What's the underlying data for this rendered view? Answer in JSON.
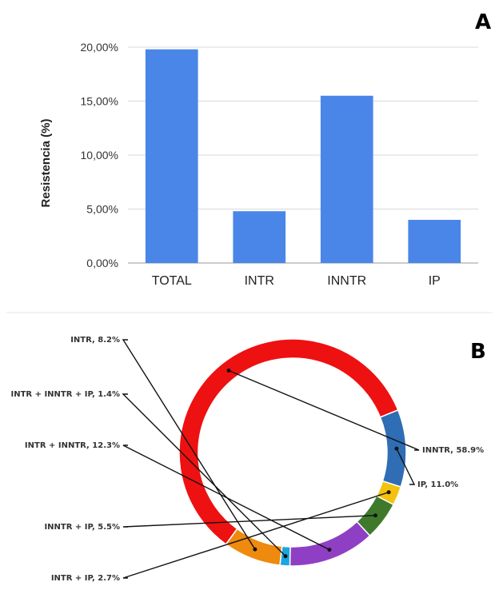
{
  "chart_data": [
    {
      "panel": "A",
      "type": "bar",
      "ylabel": "Resistencia (%)",
      "xlabel": "",
      "categories": [
        "TOTAL",
        "INTR",
        "INNTR",
        "IP"
      ],
      "values": [
        19.8,
        4.8,
        15.5,
        4.0
      ],
      "value_unit": "%",
      "ylim": [
        0,
        20
      ],
      "yticks": [
        "0,00%",
        "5,00%",
        "10,00%",
        "15,00%",
        "20,00%"
      ],
      "grid": true,
      "colors": {
        "bar": "#4a86e8",
        "grid": "#d9d9d9"
      }
    },
    {
      "panel": "B",
      "type": "pie",
      "donut": true,
      "slices": [
        {
          "label": "INNTR, 58.9%",
          "value": 58.9,
          "color": "#ee1111"
        },
        {
          "label": "IP, 11.0%",
          "value": 11.0,
          "color": "#2f6db5"
        },
        {
          "label": "INTR + IP, 2.7%",
          "value": 2.7,
          "color": "#f4c20d"
        },
        {
          "label": "INNTR + IP, 5.5%",
          "value": 5.5,
          "color": "#3f7a2c"
        },
        {
          "label": "INTR + INNTR, 12.3%",
          "value": 12.3,
          "color": "#8f3fc4"
        },
        {
          "label": "INTR + INNTR + IP, 1.4%",
          "value": 1.4,
          "color": "#1aa6e0"
        },
        {
          "label": "INTR, 8.2%",
          "value": 8.2,
          "color": "#ee8a0e"
        }
      ]
    }
  ]
}
